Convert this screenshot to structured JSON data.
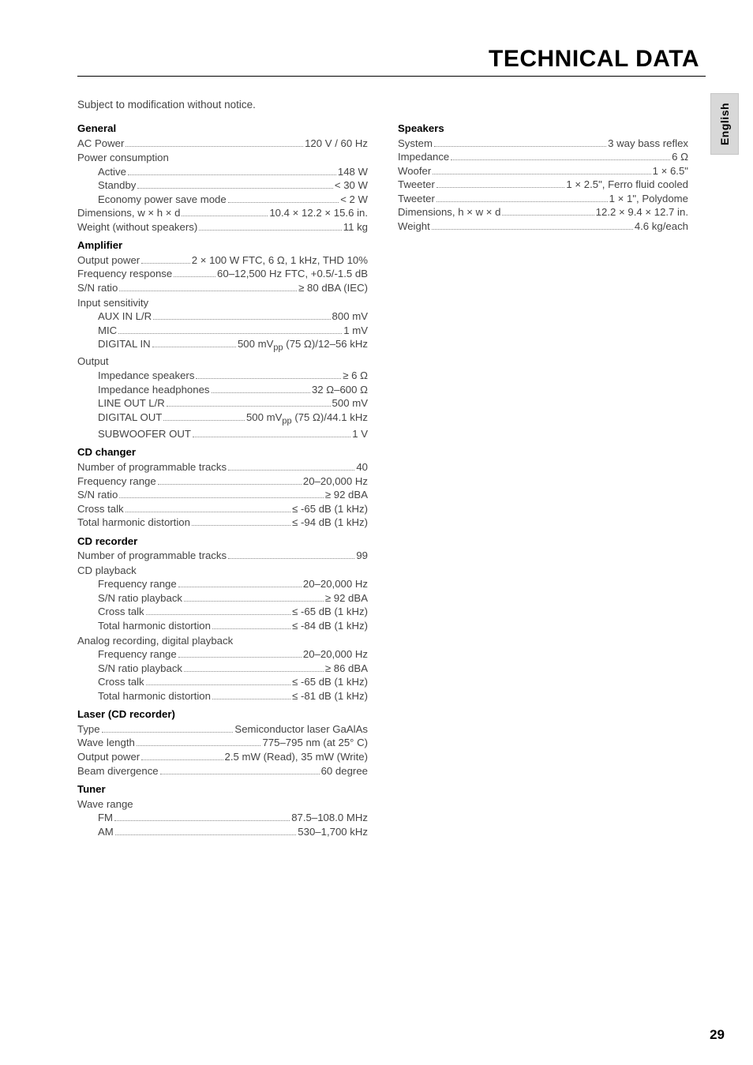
{
  "page": {
    "title": "TECHNICAL DATA",
    "notice": "Subject to modification without notice.",
    "side_tab": "English",
    "number": "29"
  },
  "left": {
    "general": {
      "title": "General",
      "rows_top": [
        {
          "label": "AC Power",
          "value": "120 V / 60 Hz"
        }
      ],
      "power_consumption_label": "Power consumption",
      "power_consumption": [
        {
          "label": "Active",
          "value": "148 W"
        },
        {
          "label": "Standby",
          "value": "< 30 W"
        },
        {
          "label": "Economy power save mode",
          "value": "< 2 W"
        }
      ],
      "rows_bottom": [
        {
          "label": "Dimensions, w × h × d",
          "value": "10.4 × 12.2 × 15.6 in."
        },
        {
          "label": "Weight (without speakers)",
          "value": "11 kg"
        }
      ]
    },
    "amplifier": {
      "title": "Amplifier",
      "rows_top": [
        {
          "label": "Output power",
          "value": "2 × 100 W FTC, 6 Ω, 1 kHz, THD 10%"
        },
        {
          "label": "Frequency response",
          "value": "60–12,500 Hz FTC, +0.5/-1.5 dB"
        },
        {
          "label": "S/N ratio",
          "value": "≥ 80 dBA (IEC)"
        }
      ],
      "input_sensitivity_label": "Input sensitivity",
      "input_sensitivity": [
        {
          "label": "AUX IN L/R",
          "value": "800 mV"
        },
        {
          "label": "MIC",
          "value": "1 mV"
        },
        {
          "label": "DIGITAL IN",
          "value_html": "500 mV<sub>pp</sub> (75 Ω)/12–56 kHz"
        }
      ],
      "output_label": "Output",
      "output": [
        {
          "label": "Impedance speakers",
          "value": "≥ 6 Ω"
        },
        {
          "label": "Impedance headphones",
          "value": "32 Ω–600 Ω"
        },
        {
          "label": "LINE OUT L/R",
          "value": "500 mV"
        },
        {
          "label": "DIGITAL OUT",
          "value_html": "500 mV<sub>pp</sub> (75 Ω)/44.1 kHz"
        },
        {
          "label": "SUBWOOFER OUT",
          "value": "1 V"
        }
      ]
    },
    "cd_changer": {
      "title": "CD changer",
      "rows": [
        {
          "label": "Number of programmable tracks",
          "value": "40"
        },
        {
          "label": "Frequency range",
          "value": "20–20,000 Hz"
        },
        {
          "label": "S/N ratio",
          "value": "≥ 92 dBA"
        },
        {
          "label": "Cross talk",
          "value": "≤ -65 dB (1 kHz)"
        },
        {
          "label": "Total harmonic distortion",
          "value": "≤ -94 dB (1 kHz)"
        }
      ]
    },
    "cd_recorder": {
      "title": "CD recorder",
      "rows_top": [
        {
          "label": "Number of programmable tracks",
          "value": "99"
        }
      ],
      "cd_playback_label": "CD playback",
      "cd_playback": [
        {
          "label": "Frequency range",
          "value": "20–20,000 Hz"
        },
        {
          "label": "S/N ratio playback",
          "value": "≥ 92 dBA"
        },
        {
          "label": "Cross talk",
          "value": "≤ -65 dB (1 kHz)"
        },
        {
          "label": "Total harmonic distortion",
          "value": "≤ -84 dB (1 kHz)"
        }
      ],
      "analog_label": "Analog recording, digital playback",
      "analog": [
        {
          "label": "Frequency range",
          "value": "20–20,000 Hz"
        },
        {
          "label": "S/N ratio playback",
          "value": "≥ 86 dBA"
        },
        {
          "label": "Cross talk",
          "value": "≤ -65 dB (1 kHz)"
        },
        {
          "label": "Total harmonic distortion",
          "value": "≤ -81 dB (1 kHz)"
        }
      ]
    },
    "laser": {
      "title": "Laser (CD recorder)",
      "rows": [
        {
          "label": "Type",
          "value": "Semiconductor laser GaAlAs"
        },
        {
          "label": "Wave length",
          "value": "775–795 nm (at 25° C)"
        },
        {
          "label": "Output power",
          "value": "2.5 mW (Read), 35 mW (Write)"
        },
        {
          "label": "Beam divergence",
          "value": "60 degree"
        }
      ]
    },
    "tuner": {
      "title": "Tuner",
      "wave_range_label": "Wave range",
      "wave_range": [
        {
          "label": "FM",
          "value": "87.5–108.0 MHz"
        },
        {
          "label": "AM",
          "value": "530–1,700 kHz"
        }
      ]
    }
  },
  "right": {
    "speakers": {
      "title": "Speakers",
      "rows": [
        {
          "label": "System",
          "value": "3 way bass reflex"
        },
        {
          "label": "Impedance",
          "value": "6 Ω"
        },
        {
          "label": "Woofer",
          "value": "1 × 6.5\""
        },
        {
          "label": "Tweeter",
          "value": "1 × 2.5\", Ferro fluid cooled"
        },
        {
          "label": "Tweeter",
          "value": "1 × 1\", Polydome"
        },
        {
          "label": "Dimensions, h × w × d",
          "value": "12.2 × 9.4 × 12.7 in."
        },
        {
          "label": "Weight",
          "value": "4.6 kg/each"
        }
      ]
    }
  }
}
